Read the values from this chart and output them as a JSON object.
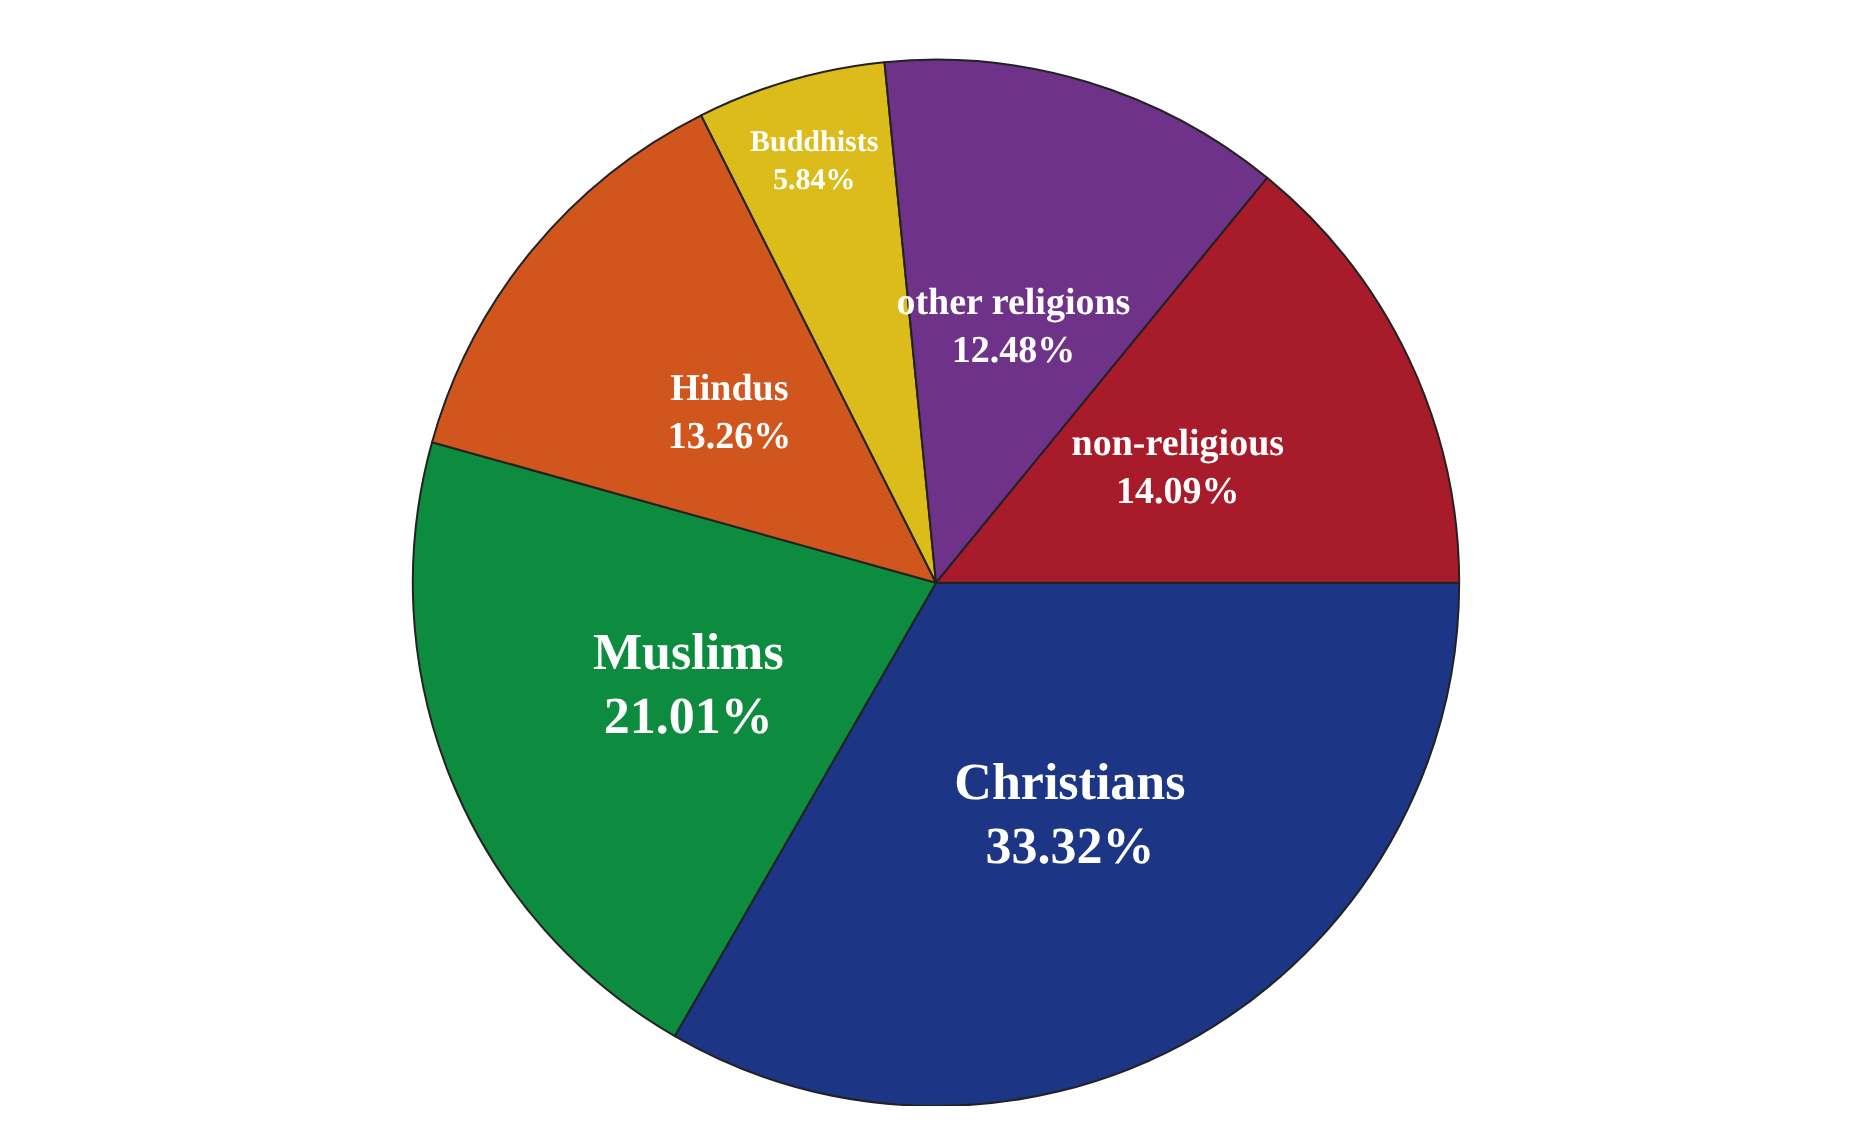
{
  "chart_data": {
    "type": "pie",
    "categories": [
      "Christians",
      "Muslims",
      "Hindus",
      "Buddhists",
      "other religions",
      "non-religious"
    ],
    "values": [
      33.32,
      21.01,
      13.26,
      5.84,
      12.48,
      14.09
    ],
    "value_labels": [
      "33.32%",
      "21.01%",
      "13.26%",
      "5.84%",
      "12.48%",
      "14.09%"
    ],
    "colors": [
      "#1c3585",
      "#0d8c3f",
      "#d0561e",
      "#dcbc1a",
      "#6e3289",
      "#a81b2a"
    ],
    "legend": false
  }
}
